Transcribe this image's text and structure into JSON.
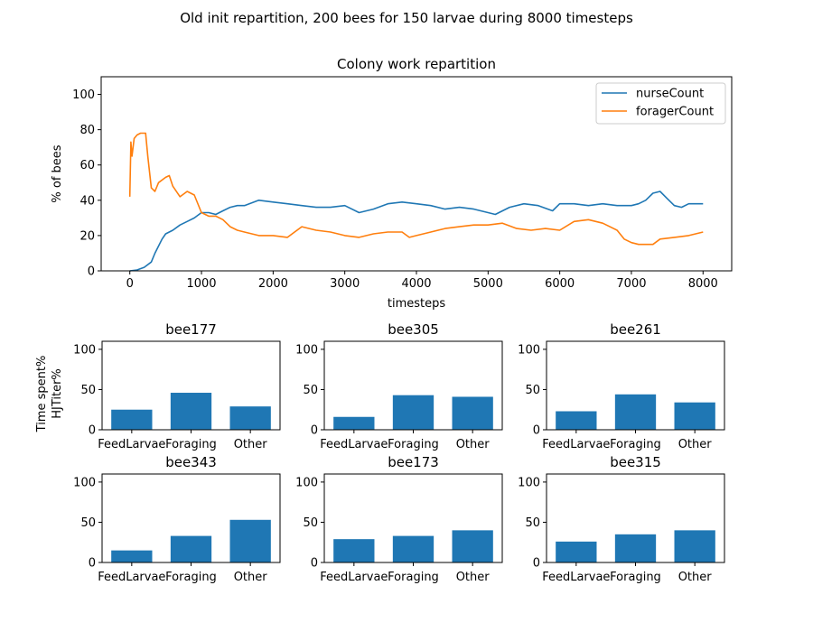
{
  "suptitle": "Old init repartition, 200 bees for 150 larvae during 8000 timesteps",
  "colors": {
    "nurse": "#1f77b4",
    "forager": "#ff7f0e",
    "bar": "#1f77b4"
  },
  "chart_data": [
    {
      "type": "line",
      "title": "Colony work repartition",
      "xlabel": "timesteps",
      "ylabel": "% of bees",
      "xlim": [
        -400,
        8400
      ],
      "ylim": [
        0,
        110
      ],
      "xticks": [
        0,
        1000,
        2000,
        3000,
        4000,
        5000,
        6000,
        7000,
        8000
      ],
      "yticks": [
        0,
        20,
        40,
        60,
        80,
        100
      ],
      "legend": "top-right",
      "grid": false,
      "series": [
        {
          "name": "nurseCount",
          "x": [
            0,
            100,
            200,
            300,
            350,
            450,
            500,
            600,
            700,
            800,
            900,
            1000,
            1100,
            1200,
            1300,
            1400,
            1500,
            1600,
            1800,
            2000,
            2200,
            2400,
            2600,
            2800,
            3000,
            3200,
            3400,
            3600,
            3800,
            4000,
            4200,
            4400,
            4600,
            4800,
            5000,
            5100,
            5300,
            5500,
            5700,
            5900,
            6000,
            6200,
            6400,
            6600,
            6800,
            7000,
            7100,
            7200,
            7300,
            7400,
            7500,
            7600,
            7700,
            7800,
            8000
          ],
          "y": [
            0,
            0.5,
            2,
            5,
            10,
            18,
            21,
            23,
            26,
            28,
            30,
            33,
            33,
            32,
            34,
            36,
            37,
            37,
            40,
            39,
            38,
            37,
            36,
            36,
            37,
            33,
            35,
            38,
            39,
            38,
            37,
            35,
            36,
            35,
            33,
            32,
            36,
            38,
            37,
            34,
            38,
            38,
            37,
            38,
            37,
            37,
            38,
            40,
            44,
            45,
            41,
            37,
            36,
            38,
            38
          ]
        },
        {
          "name": "foragerCount",
          "x": [
            0,
            15,
            30,
            60,
            100,
            150,
            220,
            250,
            300,
            350,
            400,
            500,
            550,
            600,
            700,
            800,
            900,
            1000,
            1100,
            1200,
            1300,
            1400,
            1500,
            1600,
            1800,
            2000,
            2200,
            2400,
            2600,
            2800,
            3000,
            3200,
            3400,
            3600,
            3800,
            3900,
            4000,
            4200,
            4400,
            4600,
            4800,
            5000,
            5200,
            5400,
            5600,
            5800,
            6000,
            6200,
            6400,
            6600,
            6800,
            6900,
            7000,
            7100,
            7200,
            7300,
            7400,
            7600,
            7800,
            8000
          ],
          "y": [
            42,
            73,
            65,
            75,
            77,
            78,
            78,
            65,
            47,
            45,
            50,
            53,
            54,
            48,
            42,
            45,
            43,
            33,
            31,
            31,
            29,
            25,
            23,
            22,
            20,
            20,
            19,
            25,
            23,
            22,
            20,
            19,
            21,
            22,
            22,
            19,
            20,
            22,
            24,
            25,
            26,
            26,
            27,
            24,
            23,
            24,
            23,
            28,
            29,
            27,
            23,
            18,
            16,
            15,
            15,
            15,
            18,
            19,
            20,
            22
          ]
        }
      ]
    },
    {
      "type": "bar",
      "title": "bee177",
      "categories": [
        "FeedLarvae",
        "Foraging",
        "Other"
      ],
      "values": [
        25,
        46,
        29
      ],
      "ylim": [
        0,
        110
      ],
      "yticks": [
        0,
        50,
        100
      ],
      "ylabel": "Time spent%\nHJTiter%"
    },
    {
      "type": "bar",
      "title": "bee305",
      "categories": [
        "FeedLarvae",
        "Foraging",
        "Other"
      ],
      "values": [
        16,
        43,
        41
      ],
      "ylim": [
        0,
        110
      ],
      "yticks": [
        0,
        50,
        100
      ]
    },
    {
      "type": "bar",
      "title": "bee261",
      "categories": [
        "FeedLarvae",
        "Foraging",
        "Other"
      ],
      "values": [
        23,
        44,
        34
      ],
      "ylim": [
        0,
        110
      ],
      "yticks": [
        0,
        50,
        100
      ]
    },
    {
      "type": "bar",
      "title": "bee343",
      "categories": [
        "FeedLarvae",
        "Foraging",
        "Other"
      ],
      "values": [
        15,
        33,
        53
      ],
      "ylim": [
        0,
        110
      ],
      "yticks": [
        0,
        50,
        100
      ]
    },
    {
      "type": "bar",
      "title": "bee173",
      "categories": [
        "FeedLarvae",
        "Foraging",
        "Other"
      ],
      "values": [
        29,
        33,
        40
      ],
      "ylim": [
        0,
        110
      ],
      "yticks": [
        0,
        50,
        100
      ]
    },
    {
      "type": "bar",
      "title": "bee315",
      "categories": [
        "FeedLarvae",
        "Foraging",
        "Other"
      ],
      "values": [
        26,
        35,
        40
      ],
      "ylim": [
        0,
        110
      ],
      "yticks": [
        0,
        50,
        100
      ]
    }
  ]
}
